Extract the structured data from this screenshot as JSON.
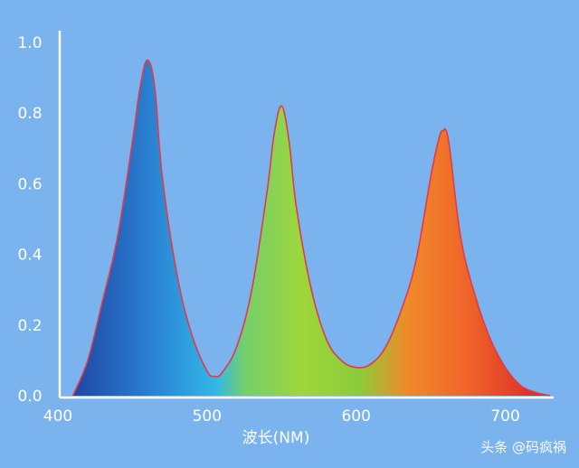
{
  "chart_data": {
    "type": "area",
    "xlabel": "波长(NM)",
    "ylabel": "",
    "title": "",
    "xlim": [
      400,
      730
    ],
    "ylim": [
      0,
      1.0
    ],
    "x_ticks": [
      "400",
      "500",
      "600",
      "700"
    ],
    "x_tick_values": [
      400,
      500,
      600,
      700
    ],
    "y_ticks": [
      "0.0",
      "0.2",
      "0.4",
      "0.6",
      "0.8",
      "1.0"
    ],
    "y_tick_values": [
      0,
      0.2,
      0.4,
      0.6,
      0.8,
      1.0
    ],
    "grid": false,
    "legend": "none",
    "series": [
      {
        "x": [
          410,
          420,
          430,
          440,
          450,
          455,
          460,
          465,
          470,
          480,
          490,
          500,
          505,
          510,
          520,
          530,
          540,
          545,
          550,
          555,
          560,
          570,
          580,
          590,
          600,
          610,
          620,
          630,
          640,
          650,
          655,
          658,
          662,
          670,
          680,
          690,
          700,
          710,
          720,
          730
        ],
        "y": [
          0.0,
          0.1,
          0.27,
          0.45,
          0.72,
          0.87,
          0.95,
          0.87,
          0.62,
          0.34,
          0.17,
          0.07,
          0.055,
          0.065,
          0.14,
          0.3,
          0.57,
          0.74,
          0.82,
          0.72,
          0.53,
          0.3,
          0.16,
          0.1,
          0.08,
          0.09,
          0.14,
          0.24,
          0.38,
          0.62,
          0.72,
          0.75,
          0.72,
          0.45,
          0.28,
          0.16,
          0.08,
          0.03,
          0.01,
          0.0
        ]
      }
    ],
    "colors": {
      "background": "#7ab3ee",
      "outline": "#e33a4a",
      "gradient_stops": [
        "#1f46a3",
        "#2a7fd1",
        "#31b8e8",
        "#74cf6c",
        "#9ed63a",
        "#8bcc3a",
        "#f08a2a",
        "#f0662a",
        "#d92525"
      ]
    }
  },
  "watermark": "头条 @码疯祸"
}
